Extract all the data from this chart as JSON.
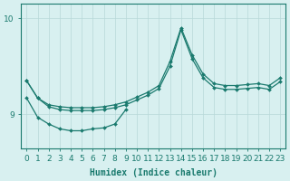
{
  "title": "",
  "xlabel": "Humidex (Indice chaleur)",
  "ylabel": "",
  "bg_color": "#d8f0f0",
  "line_color": "#1a7a6e",
  "grid_color": "#b8d8d8",
  "x_ticks": [
    0,
    1,
    2,
    3,
    4,
    5,
    6,
    7,
    8,
    9,
    10,
    11,
    12,
    13,
    14,
    15,
    16,
    17,
    18,
    19,
    20,
    21,
    22,
    23
  ],
  "y_ticks": [
    9,
    10
  ],
  "ylim": [
    8.65,
    10.15
  ],
  "xlim": [
    -0.5,
    23.5
  ],
  "series1": {
    "x": [
      0,
      1,
      2,
      3,
      4,
      5,
      6,
      7,
      8,
      9,
      10,
      11,
      12,
      13,
      14,
      15,
      16,
      17,
      18,
      19,
      20,
      21,
      22,
      23
    ],
    "y": [
      9.35,
      9.17,
      9.1,
      9.08,
      9.07,
      9.07,
      9.07,
      9.08,
      9.1,
      9.13,
      9.18,
      9.23,
      9.3,
      9.55,
      9.9,
      9.62,
      9.42,
      9.32,
      9.3,
      9.3,
      9.31,
      9.32,
      9.3,
      9.38
    ]
  },
  "series2": {
    "x": [
      0,
      1,
      2,
      3,
      4,
      5,
      6,
      7,
      8,
      9,
      10,
      11,
      12,
      13,
      14,
      15,
      16,
      17,
      18,
      19,
      20,
      21,
      22,
      23
    ],
    "y": [
      9.35,
      9.17,
      9.08,
      9.05,
      9.04,
      9.04,
      9.04,
      9.05,
      9.07,
      9.1,
      9.15,
      9.2,
      9.27,
      9.5,
      9.88,
      9.58,
      9.38,
      9.28,
      9.26,
      9.26,
      9.27,
      9.28,
      9.26,
      9.34
    ]
  },
  "series3": {
    "x": [
      0,
      1,
      2,
      3,
      4,
      5,
      6,
      7,
      8,
      9
    ],
    "y": [
      9.17,
      8.97,
      8.9,
      8.85,
      8.83,
      8.83,
      8.85,
      8.86,
      8.9,
      9.05
    ]
  },
  "label_fontsize": 7,
  "tick_fontsize": 6.5
}
